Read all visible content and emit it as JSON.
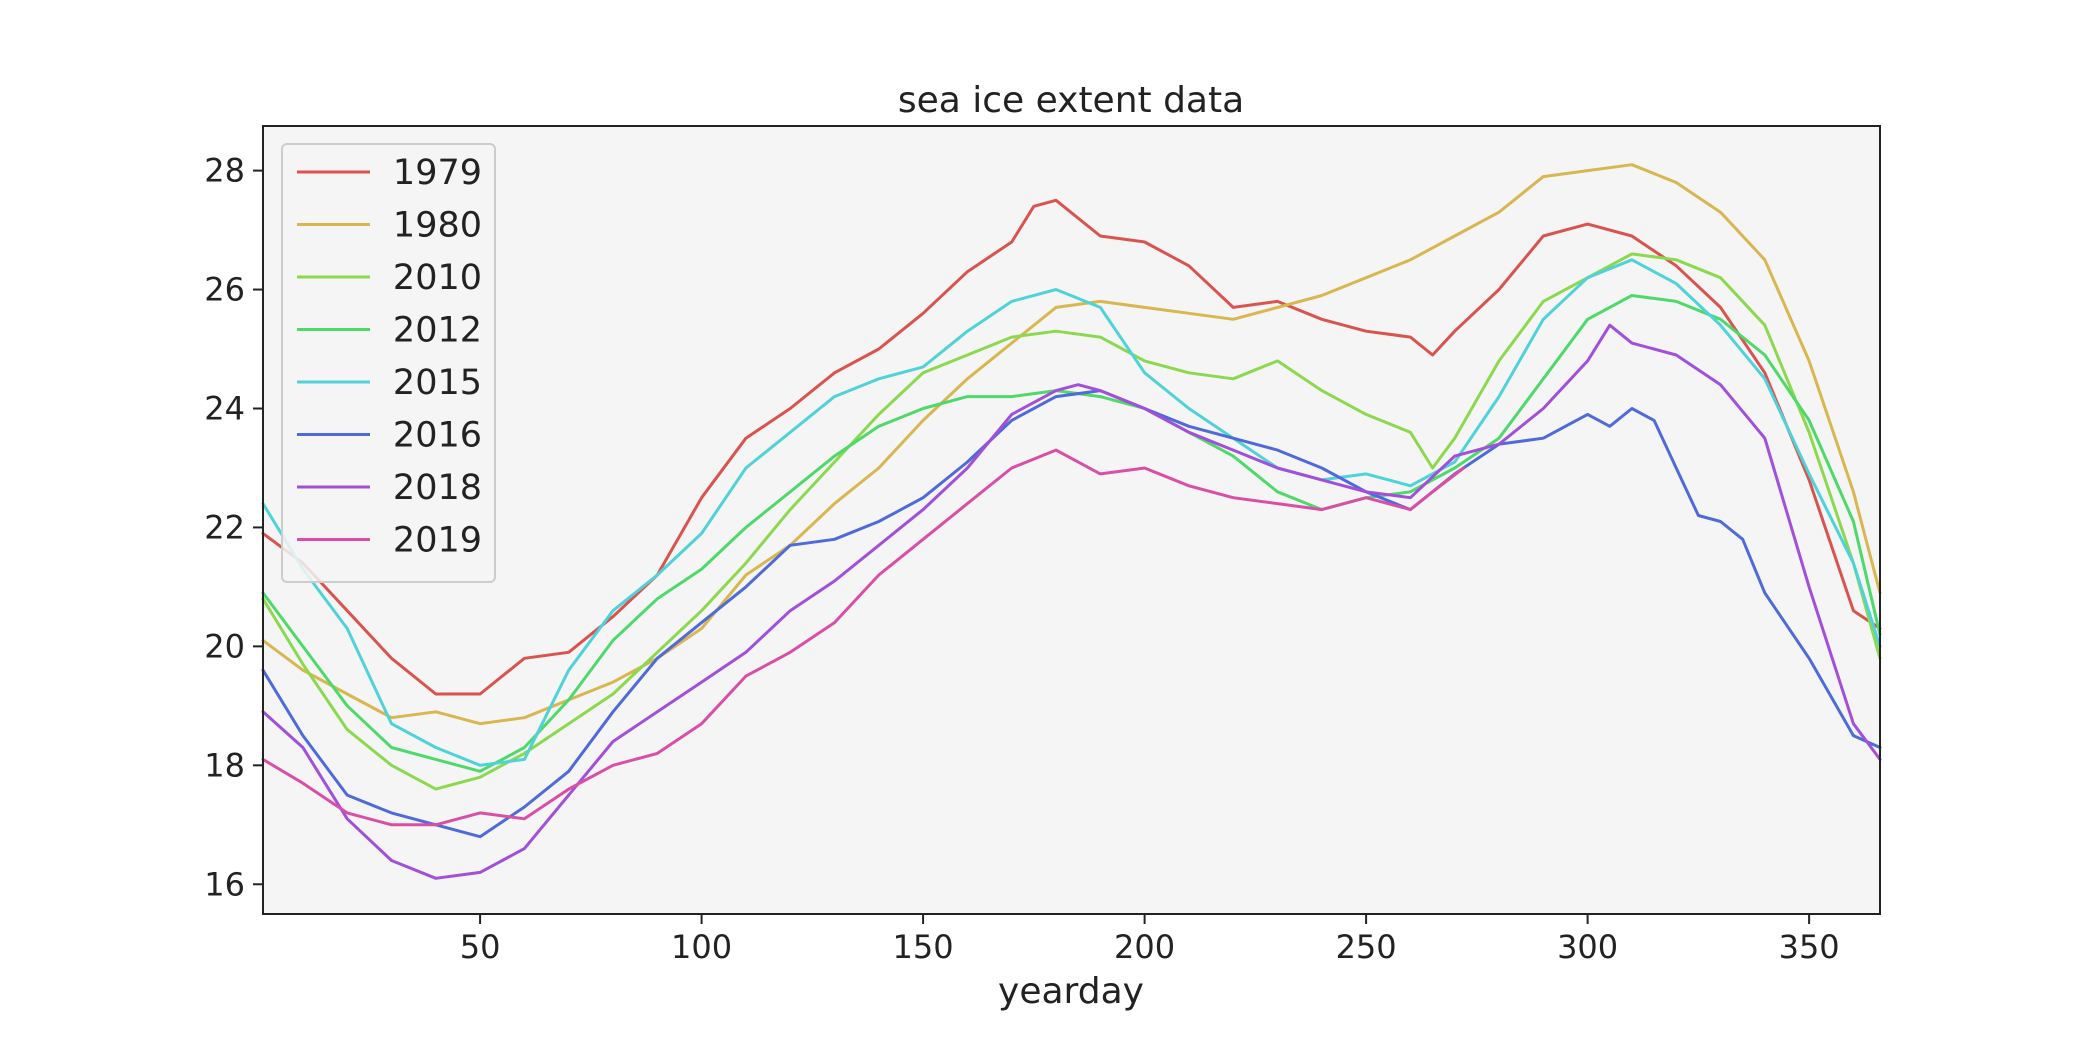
{
  "chart_data": {
    "type": "line",
    "title": "sea ice extent data",
    "xlabel": "yearday",
    "ylabel": "",
    "xlim": [
      1,
      366
    ],
    "ylim": [
      15.5,
      28.75
    ],
    "xticks": [
      50,
      100,
      150,
      200,
      250,
      300,
      350
    ],
    "yticks": [
      16,
      18,
      20,
      22,
      24,
      26,
      28
    ],
    "grid": false,
    "legend_position": "top-left",
    "background": "#f5f5f5",
    "series": [
      {
        "name": "1979",
        "color": "#d9534f",
        "x": [
          1,
          10,
          20,
          30,
          40,
          50,
          60,
          70,
          80,
          90,
          100,
          110,
          120,
          130,
          140,
          150,
          160,
          170,
          175,
          180,
          190,
          200,
          210,
          220,
          230,
          240,
          250,
          260,
          265,
          270,
          280,
          290,
          300,
          310,
          320,
          330,
          340,
          350,
          360,
          366
        ],
        "y": [
          21.9,
          21.4,
          20.6,
          19.8,
          19.2,
          19.2,
          19.8,
          19.9,
          20.5,
          21.2,
          22.5,
          23.5,
          24.0,
          24.6,
          25.0,
          25.6,
          26.3,
          26.8,
          27.4,
          27.5,
          26.9,
          26.8,
          26.4,
          25.7,
          25.8,
          25.5,
          25.3,
          25.2,
          24.9,
          25.3,
          26.0,
          26.9,
          27.1,
          26.9,
          26.4,
          25.7,
          24.6,
          22.8,
          20.6,
          20.3
        ]
      },
      {
        "name": "1980",
        "color": "#d9b64f",
        "x": [
          1,
          10,
          20,
          30,
          40,
          50,
          60,
          70,
          80,
          90,
          100,
          110,
          120,
          130,
          140,
          150,
          160,
          170,
          180,
          190,
          200,
          210,
          220,
          230,
          240,
          250,
          260,
          270,
          280,
          290,
          300,
          310,
          320,
          330,
          340,
          350,
          360,
          366
        ],
        "y": [
          20.1,
          19.6,
          19.2,
          18.8,
          18.9,
          18.7,
          18.8,
          19.1,
          19.4,
          19.8,
          20.3,
          21.2,
          21.7,
          22.4,
          23.0,
          23.8,
          24.5,
          25.1,
          25.7,
          25.8,
          25.7,
          25.6,
          25.5,
          25.7,
          25.9,
          26.2,
          26.5,
          26.9,
          27.3,
          27.9,
          28.0,
          28.1,
          27.8,
          27.3,
          26.5,
          24.8,
          22.6,
          20.9
        ]
      },
      {
        "name": "2010",
        "color": "#8bd94f",
        "x": [
          1,
          10,
          20,
          30,
          40,
          50,
          60,
          70,
          80,
          90,
          100,
          110,
          120,
          130,
          140,
          150,
          160,
          170,
          180,
          190,
          200,
          210,
          220,
          230,
          240,
          250,
          260,
          265,
          270,
          280,
          290,
          300,
          310,
          320,
          330,
          340,
          350,
          360,
          366
        ],
        "y": [
          20.8,
          19.7,
          18.6,
          18.0,
          17.6,
          17.8,
          18.2,
          18.7,
          19.2,
          19.9,
          20.6,
          21.4,
          22.3,
          23.1,
          23.9,
          24.6,
          24.9,
          25.2,
          25.3,
          25.2,
          24.8,
          24.6,
          24.5,
          24.8,
          24.3,
          23.9,
          23.6,
          23.0,
          23.5,
          24.8,
          25.8,
          26.2,
          26.6,
          26.5,
          26.2,
          25.4,
          23.6,
          21.4,
          19.8
        ]
      },
      {
        "name": "2012",
        "color": "#4fd96a",
        "x": [
          1,
          10,
          20,
          30,
          40,
          50,
          60,
          70,
          80,
          90,
          100,
          110,
          120,
          130,
          140,
          150,
          160,
          170,
          180,
          190,
          200,
          210,
          220,
          230,
          240,
          250,
          260,
          270,
          280,
          290,
          300,
          310,
          320,
          330,
          340,
          350,
          360,
          366
        ],
        "y": [
          20.9,
          20.0,
          19.0,
          18.3,
          18.1,
          17.9,
          18.3,
          19.1,
          20.1,
          20.8,
          21.3,
          22.0,
          22.6,
          23.2,
          23.7,
          24.0,
          24.2,
          24.2,
          24.3,
          24.2,
          24.0,
          23.6,
          23.2,
          22.6,
          22.3,
          22.5,
          22.6,
          23.0,
          23.5,
          24.5,
          25.5,
          25.9,
          25.8,
          25.5,
          24.9,
          23.8,
          22.1,
          20.2
        ]
      },
      {
        "name": "2015",
        "color": "#4fd2d9",
        "x": [
          1,
          10,
          20,
          30,
          40,
          50,
          60,
          70,
          80,
          90,
          100,
          110,
          120,
          130,
          140,
          150,
          160,
          170,
          180,
          190,
          200,
          210,
          220,
          230,
          240,
          250,
          260,
          270,
          280,
          290,
          300,
          310,
          320,
          330,
          340,
          350,
          360,
          366
        ],
        "y": [
          22.4,
          21.3,
          20.3,
          18.7,
          18.3,
          18.0,
          18.1,
          19.6,
          20.6,
          21.2,
          21.9,
          23.0,
          23.6,
          24.2,
          24.5,
          24.7,
          25.3,
          25.8,
          26.0,
          25.7,
          24.6,
          24.0,
          23.5,
          23.0,
          22.8,
          22.9,
          22.7,
          23.1,
          24.2,
          25.5,
          26.2,
          26.5,
          26.1,
          25.4,
          24.5,
          22.9,
          21.4,
          20.0
        ]
      },
      {
        "name": "2016",
        "color": "#4f6ad9",
        "x": [
          1,
          10,
          20,
          30,
          40,
          50,
          60,
          70,
          80,
          90,
          100,
          110,
          120,
          130,
          140,
          150,
          160,
          170,
          180,
          190,
          200,
          210,
          220,
          230,
          240,
          250,
          260,
          270,
          280,
          290,
          300,
          305,
          310,
          315,
          320,
          325,
          330,
          335,
          340,
          350,
          360,
          366
        ],
        "y": [
          19.6,
          18.5,
          17.5,
          17.2,
          17.0,
          16.8,
          17.3,
          17.9,
          18.9,
          19.8,
          20.4,
          21.0,
          21.7,
          21.8,
          22.1,
          22.5,
          23.1,
          23.8,
          24.2,
          24.3,
          24.0,
          23.7,
          23.5,
          23.3,
          23.0,
          22.6,
          22.3,
          22.9,
          23.4,
          23.5,
          23.9,
          23.7,
          24.0,
          23.8,
          23.0,
          22.2,
          22.1,
          21.8,
          20.9,
          19.8,
          18.5,
          18.3
        ]
      },
      {
        "name": "2018",
        "color": "#a24fd9",
        "x": [
          1,
          10,
          20,
          30,
          40,
          50,
          60,
          70,
          80,
          90,
          100,
          110,
          120,
          130,
          140,
          150,
          160,
          170,
          180,
          185,
          190,
          200,
          210,
          220,
          230,
          240,
          250,
          260,
          270,
          280,
          290,
          300,
          305,
          310,
          320,
          330,
          340,
          350,
          360,
          366
        ],
        "y": [
          18.9,
          18.3,
          17.1,
          16.4,
          16.1,
          16.2,
          16.6,
          17.5,
          18.4,
          18.9,
          19.4,
          19.9,
          20.6,
          21.1,
          21.7,
          22.3,
          23.0,
          23.9,
          24.3,
          24.4,
          24.3,
          24.0,
          23.6,
          23.3,
          23.0,
          22.8,
          22.6,
          22.5,
          23.2,
          23.4,
          24.0,
          24.8,
          25.4,
          25.1,
          24.9,
          24.4,
          23.5,
          21.0,
          18.7,
          18.1
        ]
      },
      {
        "name": "2019",
        "color": "#d94fa8",
        "x": [
          1,
          10,
          20,
          30,
          40,
          50,
          60,
          70,
          80,
          90,
          100,
          110,
          120,
          130,
          140,
          150,
          160,
          170,
          180,
          190,
          200,
          210,
          220,
          230,
          240,
          250,
          260,
          265,
          272
        ],
        "y": [
          18.1,
          17.7,
          17.2,
          17.0,
          17.0,
          17.2,
          17.1,
          17.6,
          18.0,
          18.2,
          18.7,
          19.5,
          19.9,
          20.4,
          21.2,
          21.8,
          22.4,
          23.0,
          23.3,
          22.9,
          23.0,
          22.7,
          22.5,
          22.4,
          22.3,
          22.5,
          22.3,
          22.6,
          23.0
        ]
      }
    ]
  }
}
